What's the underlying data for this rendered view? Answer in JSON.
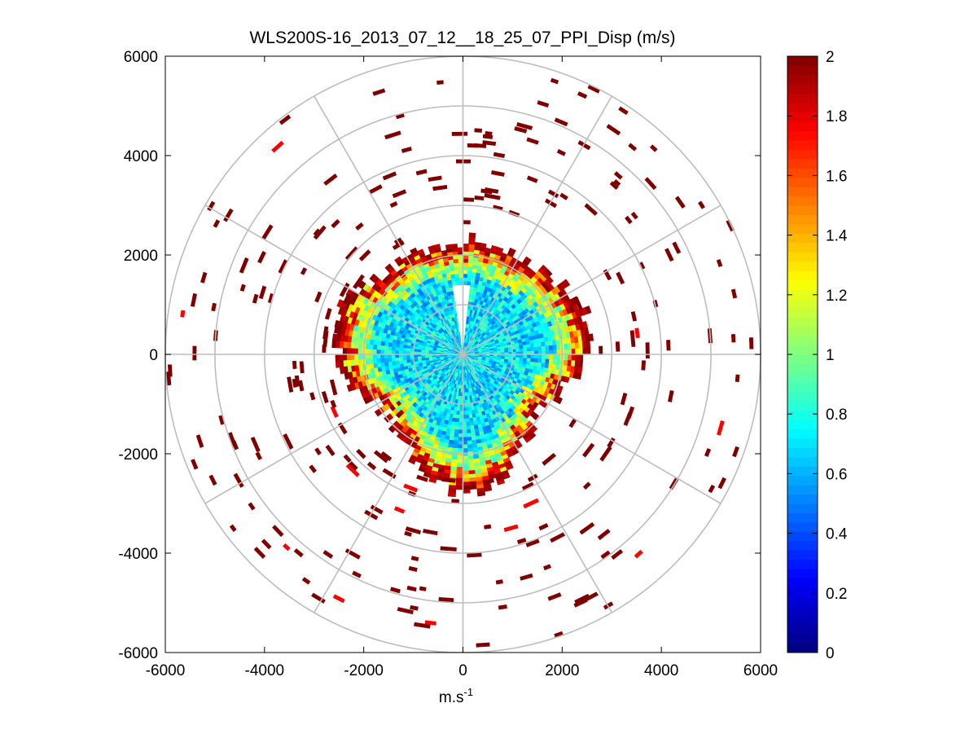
{
  "chart_data": {
    "type": "heatmap",
    "subtype": "polar-ppi-scan",
    "title": "WLS200S-16_2013_07_12__18_25_07_PPI_Disp (m/s)",
    "xlabel": "m.s",
    "xlabel_superscript": "-1",
    "ylabel": "",
    "xlim": [
      -6000,
      6000
    ],
    "ylim": [
      -6000,
      6000
    ],
    "xticks": [
      -6000,
      -4000,
      -2000,
      0,
      2000,
      4000,
      6000
    ],
    "yticks": [
      6000,
      4000,
      2000,
      0,
      -2000,
      -4000,
      -6000
    ],
    "xtick_labels": [
      "-6000",
      "-4000",
      "-2000",
      "0",
      "2000",
      "4000",
      "6000"
    ],
    "ytick_labels": [
      "6000",
      "4000",
      "2000",
      "0",
      "-2000",
      "-4000",
      "-6000"
    ],
    "polar_grid": {
      "ring_radii": [
        1000,
        2000,
        3000,
        4000,
        5000,
        6000
      ],
      "spoke_angles_deg": [
        0,
        30,
        60,
        90,
        120,
        150,
        180,
        210,
        240,
        270,
        300,
        330
      ]
    },
    "colorbar": {
      "colormap": "jet",
      "range": [
        0,
        2
      ],
      "ticks": [
        2,
        1.8,
        1.6,
        1.4,
        1.2,
        1,
        0.8,
        0.6,
        0.4,
        0.2,
        0
      ],
      "tick_labels": [
        "2",
        "1.8",
        "1.6",
        "1.4",
        "1.2",
        "1",
        "0.8",
        "0.6",
        "0.4",
        "0.2",
        "0"
      ]
    },
    "data_summary": {
      "dense_core_radius_m": 2300,
      "typical_core_value": 0.7,
      "ring_edge_value": 2,
      "sparse_outer_value": 2,
      "outer_extent_m": 6000
    }
  }
}
